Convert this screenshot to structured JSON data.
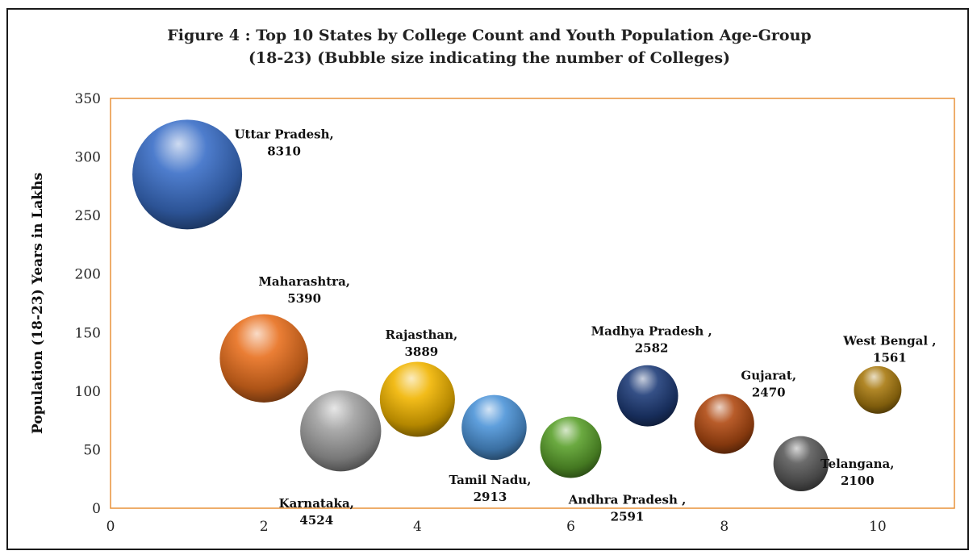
{
  "chart_data": {
    "type": "bubble",
    "title_line1": "Figure 4 : Top 10 States by College Count and Youth Population Age-Group",
    "title_line2": "(18-23) (Bubble size indicating the number of Colleges)",
    "xlabel": "",
    "ylabel": "Population (18-23) Years in Lakhs",
    "xlim": [
      0,
      11
    ],
    "ylim": [
      0,
      350
    ],
    "x_ticks": [
      "0",
      "2",
      "4",
      "6",
      "8",
      "10"
    ],
    "y_ticks": [
      "0",
      "50",
      "100",
      "150",
      "200",
      "250",
      "300",
      "350"
    ],
    "grid": false,
    "points": [
      {
        "x": 1,
        "y": 285,
        "size": 8310,
        "label_name": "Uttar Pradesh,",
        "label_value": "8310",
        "color": "#3a6fc7"
      },
      {
        "x": 2,
        "y": 128,
        "size": 5390,
        "label_name": "Maharashtra,",
        "label_value": "5390",
        "color": "#e8701f"
      },
      {
        "x": 3,
        "y": 66,
        "size": 4524,
        "label_name": "Karnataka,",
        "label_value": "4524",
        "color": "#a0a0a0"
      },
      {
        "x": 4,
        "y": 93,
        "size": 3889,
        "label_name": "Rajasthan,",
        "label_value": "3889",
        "color": "#f0b400"
      },
      {
        "x": 5,
        "y": 69,
        "size": 2913,
        "label_name": "Tamil Nadu,",
        "label_value": "2913",
        "color": "#4d94d8"
      },
      {
        "x": 6,
        "y": 52,
        "size": 2591,
        "label_name": "Andhra Pradesh ,",
        "label_value": "2591",
        "color": "#5aa02c"
      },
      {
        "x": 7,
        "y": 96,
        "size": 2582,
        "label_name": "Madhya Pradesh ,",
        "label_value": "2582",
        "color": "#1f3c78"
      },
      {
        "x": 8,
        "y": 72,
        "size": 2470,
        "label_name": "Gujarat,",
        "label_value": "2470",
        "color": "#b04a12"
      },
      {
        "x": 9,
        "y": 38,
        "size": 2100,
        "label_name": "Telangana,",
        "label_value": "2100",
        "color": "#5c5c5c"
      },
      {
        "x": 10,
        "y": 101,
        "size": 1561,
        "label_name": "West Bengal ,",
        "label_value": "1561",
        "color": "#a87a10"
      }
    ],
    "plot_border_color": "#e8923a"
  }
}
